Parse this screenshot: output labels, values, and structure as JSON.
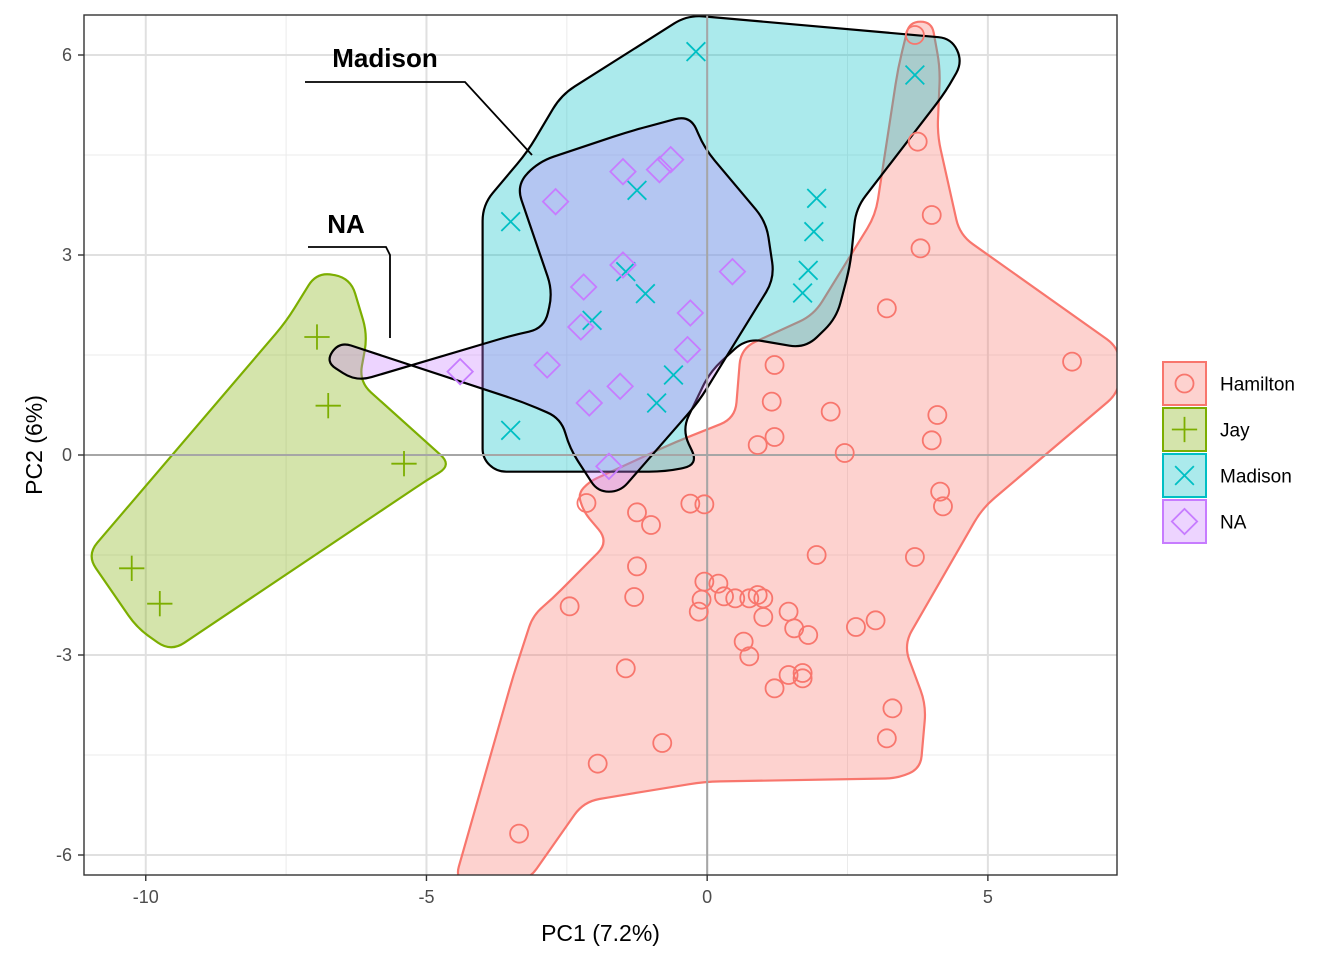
{
  "chart_data": {
    "type": "scatter",
    "title": "",
    "xlabel": "PC1 (7.2%)",
    "ylabel": "PC2 (6%)",
    "xlim": [
      -11.1,
      7.3
    ],
    "ylim": [
      -6.3,
      6.6
    ],
    "x_ticks": [
      -10,
      -5,
      0,
      5
    ],
    "y_ticks": [
      -6,
      -3,
      0,
      3,
      6
    ],
    "x_tick_labels": [
      "-10",
      "-5",
      "0",
      "5"
    ],
    "y_tick_labels": [
      "-6",
      "-3",
      "0",
      "3",
      "6"
    ],
    "reference_lines": {
      "x": 0,
      "y": 0
    },
    "grid": true,
    "legend_position": "right",
    "hull_labels": [
      {
        "text": "Madison",
        "series": "Madison"
      },
      {
        "text": "NA",
        "series": "NA"
      }
    ],
    "series": [
      {
        "name": "Hamilton",
        "color": "#F8766D",
        "marker": "circle",
        "points": [
          [
            3.7,
            6.3
          ],
          [
            3.75,
            4.7
          ],
          [
            4.0,
            3.6
          ],
          [
            3.8,
            3.1
          ],
          [
            3.2,
            2.2
          ],
          [
            6.5,
            1.4
          ],
          [
            1.2,
            1.35
          ],
          [
            1.15,
            0.8
          ],
          [
            2.2,
            0.65
          ],
          [
            4.1,
            0.6
          ],
          [
            1.2,
            0.27
          ],
          [
            0.9,
            0.15
          ],
          [
            4.0,
            0.22
          ],
          [
            2.45,
            0.03
          ],
          [
            4.15,
            -0.55
          ],
          [
            4.2,
            -0.77
          ],
          [
            -0.3,
            -0.73
          ],
          [
            -0.05,
            -0.74
          ],
          [
            -1.25,
            -0.86
          ],
          [
            -1.0,
            -1.05
          ],
          [
            1.95,
            -1.5
          ],
          [
            3.7,
            -1.53
          ],
          [
            -1.25,
            -1.67
          ],
          [
            -0.05,
            -1.9
          ],
          [
            0.2,
            -1.93
          ],
          [
            -1.3,
            -2.13
          ],
          [
            0.3,
            -2.12
          ],
          [
            0.5,
            -2.15
          ],
          [
            0.75,
            -2.15
          ],
          [
            0.9,
            -2.1
          ],
          [
            1.0,
            -2.15
          ],
          [
            -0.1,
            -2.17
          ],
          [
            -2.45,
            -2.27
          ],
          [
            -0.15,
            -2.35
          ],
          [
            1.45,
            -2.35
          ],
          [
            1.0,
            -2.43
          ],
          [
            1.55,
            -2.6
          ],
          [
            1.8,
            -2.7
          ],
          [
            2.65,
            -2.58
          ],
          [
            3.0,
            -2.48
          ],
          [
            0.65,
            -2.8
          ],
          [
            0.75,
            -3.02
          ],
          [
            -1.45,
            -3.2
          ],
          [
            1.45,
            -3.3
          ],
          [
            1.7,
            -3.35
          ],
          [
            1.7,
            -3.27
          ],
          [
            1.2,
            -3.5
          ],
          [
            3.3,
            -3.8
          ],
          [
            3.2,
            -4.25
          ],
          [
            -0.8,
            -4.32
          ],
          [
            -1.95,
            -4.63
          ],
          [
            -3.35,
            -5.68
          ],
          [
            -2.15,
            -0.72
          ]
        ],
        "hull": [
          [
            3.6,
            6.5
          ],
          [
            4.0,
            6.5
          ],
          [
            4.15,
            5.8
          ],
          [
            4.1,
            4.8
          ],
          [
            4.5,
            3.3
          ],
          [
            7.35,
            1.6
          ],
          [
            7.35,
            0.95
          ],
          [
            4.9,
            -0.8
          ],
          [
            3.5,
            -2.85
          ],
          [
            3.9,
            -3.75
          ],
          [
            3.8,
            -4.7
          ],
          [
            3.4,
            -4.85
          ],
          [
            -0.05,
            -4.9
          ],
          [
            -1.5,
            -5.1
          ],
          [
            -2.2,
            -5.2
          ],
          [
            -3.2,
            -6.4
          ],
          [
            -4.5,
            -6.4
          ],
          [
            -3.45,
            -3.3
          ],
          [
            -3.1,
            -2.4
          ],
          [
            -2.75,
            -2.15
          ],
          [
            -1.75,
            -1.3
          ],
          [
            -2.2,
            -0.85
          ],
          [
            -2.3,
            -0.58
          ],
          [
            -2.1,
            -0.4
          ],
          [
            -0.55,
            0.2
          ],
          [
            0.5,
            0.55
          ],
          [
            0.6,
            1.6
          ],
          [
            1.9,
            2.1
          ],
          [
            3.0,
            3.6
          ],
          [
            3.4,
            5.8
          ]
        ]
      },
      {
        "name": "Jay",
        "color": "#7CAE00",
        "marker": "plus",
        "points": [
          [
            -6.95,
            1.77
          ],
          [
            -6.75,
            0.74
          ],
          [
            -5.4,
            -0.13
          ],
          [
            -10.25,
            -1.7
          ],
          [
            -9.75,
            -2.23
          ]
        ],
        "hull": [
          [
            -6.95,
            2.75
          ],
          [
            -6.35,
            2.65
          ],
          [
            -6.05,
            1.8
          ],
          [
            -6.2,
            1.1
          ],
          [
            -4.55,
            -0.15
          ],
          [
            -5.0,
            -0.38
          ],
          [
            -9.55,
            -2.95
          ],
          [
            -10.15,
            -2.6
          ],
          [
            -11.05,
            -1.5
          ],
          [
            -7.5,
            2.0
          ]
        ]
      },
      {
        "name": "Madison",
        "color": "#00BFC4",
        "marker": "x",
        "points": [
          [
            -0.2,
            6.05
          ],
          [
            3.7,
            5.7
          ],
          [
            -1.25,
            3.97
          ],
          [
            1.95,
            3.85
          ],
          [
            -3.5,
            3.5
          ],
          [
            1.9,
            3.35
          ],
          [
            1.8,
            2.77
          ],
          [
            -1.45,
            2.75
          ],
          [
            1.7,
            2.43
          ],
          [
            -1.1,
            2.42
          ],
          [
            -2.05,
            2.02
          ],
          [
            -0.6,
            1.2
          ],
          [
            -0.9,
            0.78
          ],
          [
            -3.5,
            0.37
          ]
        ],
        "hull": [
          [
            -0.35,
            6.6
          ],
          [
            4.35,
            6.25
          ],
          [
            4.55,
            5.9
          ],
          [
            4.25,
            5.45
          ],
          [
            2.65,
            3.7
          ],
          [
            2.55,
            2.85
          ],
          [
            2.3,
            2.05
          ],
          [
            1.75,
            1.6
          ],
          [
            0.7,
            1.75
          ],
          [
            0.05,
            1.25
          ],
          [
            -0.45,
            0.38
          ],
          [
            -0.15,
            -0.15
          ],
          [
            -0.75,
            -0.25
          ],
          [
            -3.75,
            -0.25
          ],
          [
            -4.0,
            -0.05
          ],
          [
            -4.0,
            3.75
          ],
          [
            -3.2,
            4.55
          ],
          [
            -2.6,
            5.4
          ]
        ]
      },
      {
        "name": "NA",
        "color": "#C77CFF",
        "marker": "diamond",
        "points": [
          [
            -0.65,
            4.43
          ],
          [
            -0.85,
            4.28
          ],
          [
            -1.5,
            4.25
          ],
          [
            -2.7,
            3.8
          ],
          [
            -1.5,
            2.85
          ],
          [
            0.45,
            2.75
          ],
          [
            -2.2,
            2.52
          ],
          [
            -0.3,
            2.13
          ],
          [
            -2.25,
            1.92
          ],
          [
            -0.35,
            1.58
          ],
          [
            -2.85,
            1.35
          ],
          [
            -4.4,
            1.25
          ],
          [
            -1.55,
            1.03
          ],
          [
            -2.1,
            0.78
          ],
          [
            -1.75,
            -0.17
          ]
        ],
        "hull": [
          [
            -0.3,
            5.1
          ],
          [
            -0.05,
            4.6
          ],
          [
            1.05,
            3.5
          ],
          [
            1.2,
            2.65
          ],
          [
            -0.15,
            0.8
          ],
          [
            -1.55,
            -0.55
          ],
          [
            -1.95,
            -0.55
          ],
          [
            -2.45,
            0.1
          ],
          [
            -2.6,
            0.55
          ],
          [
            -3.3,
            0.8
          ],
          [
            -6.55,
            1.7
          ],
          [
            -6.8,
            1.4
          ],
          [
            -6.25,
            1.1
          ],
          [
            -3.45,
            1.8
          ],
          [
            -2.9,
            1.9
          ],
          [
            -2.75,
            2.45
          ],
          [
            -3.4,
            4.05
          ],
          [
            -3.0,
            4.4
          ],
          [
            -1.4,
            4.85
          ]
        ]
      }
    ]
  }
}
